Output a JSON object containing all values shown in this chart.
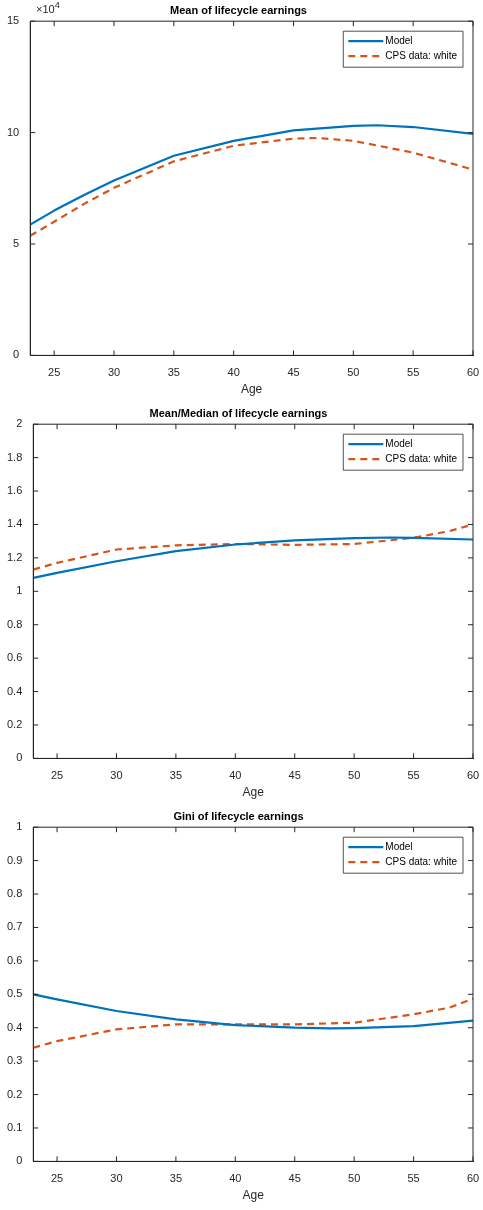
{
  "chart_data": [
    {
      "type": "line",
      "title": "Mean of lifecycle earnings",
      "xlabel": "Age",
      "annotations": [
        "×10$^{4}$"
      ],
      "xlim": [
        23,
        60
      ],
      "xticks": [
        25,
        30,
        35,
        40,
        45,
        50,
        55,
        60
      ],
      "ylim": [
        0,
        15
      ],
      "yticks": [
        0,
        5,
        10,
        15
      ],
      "grid": false,
      "legend": "top right",
      "marker": "none",
      "series": [
        {
          "name": "Model",
          "color": "#0072bd",
          "line_style": "solid",
          "x": [
            23,
            25,
            27.5,
            30,
            35,
            40,
            45,
            50,
            52,
            55,
            60
          ],
          "values": [
            5.87,
            6.5,
            7.2,
            7.85,
            8.96,
            9.63,
            10.1,
            10.3,
            10.33,
            10.25,
            9.94
          ]
        },
        {
          "name": "CPS data: white",
          "color": "#d95319",
          "line_style": "dashed",
          "x": [
            23,
            25,
            27.5,
            30,
            35,
            40,
            45,
            47,
            50,
            55,
            60
          ],
          "values": [
            5.37,
            6.0,
            6.8,
            7.52,
            8.71,
            9.41,
            9.73,
            9.76,
            9.63,
            9.1,
            8.34
          ]
        }
      ]
    },
    {
      "type": "line",
      "title": "Mean/Median of lifecycle earnings",
      "xlabel": "Age",
      "xlim": [
        23,
        60
      ],
      "xticks": [
        25,
        30,
        35,
        40,
        45,
        50,
        55,
        60
      ],
      "ylim": [
        0,
        2
      ],
      "yticks": [
        0,
        0.2,
        0.4,
        0.6,
        0.8,
        1,
        1.2,
        1.4,
        1.6,
        1.8,
        2
      ],
      "grid": false,
      "legend": "top right",
      "marker": "none",
      "series": [
        {
          "name": "Model",
          "color": "#0072bd",
          "line_style": "solid",
          "x": [
            23,
            25,
            30,
            35,
            40,
            45,
            50,
            53,
            55,
            60
          ],
          "values": [
            1.08,
            1.11,
            1.18,
            1.24,
            1.28,
            1.305,
            1.318,
            1.322,
            1.32,
            1.31
          ]
        },
        {
          "name": "CPS data: white",
          "color": "#d95319",
          "line_style": "dashed",
          "x": [
            23,
            25,
            30,
            35,
            40,
            45,
            50,
            55,
            58,
            60
          ],
          "values": [
            1.13,
            1.17,
            1.25,
            1.275,
            1.283,
            1.278,
            1.283,
            1.32,
            1.36,
            1.4
          ]
        }
      ]
    },
    {
      "type": "line",
      "title": "Gini of lifecycle earnings",
      "xlabel": "Age",
      "xlim": [
        23,
        60
      ],
      "xticks": [
        25,
        30,
        35,
        40,
        45,
        50,
        55,
        60
      ],
      "ylim": [
        0,
        1
      ],
      "yticks": [
        0,
        0.1,
        0.2,
        0.3,
        0.4,
        0.5,
        0.6,
        0.7,
        0.8,
        0.9,
        1
      ],
      "grid": false,
      "legend": "top right",
      "marker": "none",
      "series": [
        {
          "name": "Model",
          "color": "#0072bd",
          "line_style": "solid",
          "x": [
            23,
            25,
            30,
            35,
            40,
            45,
            48,
            50,
            55,
            60
          ],
          "values": [
            0.5,
            0.485,
            0.45,
            0.425,
            0.408,
            0.4,
            0.398,
            0.399,
            0.405,
            0.421
          ]
        },
        {
          "name": "CPS data: white",
          "color": "#d95319",
          "line_style": "dashed",
          "x": [
            23,
            25,
            30,
            35,
            40,
            45,
            50,
            55,
            58,
            60
          ],
          "values": [
            0.34,
            0.36,
            0.395,
            0.41,
            0.41,
            0.41,
            0.415,
            0.44,
            0.46,
            0.487
          ]
        }
      ]
    }
  ]
}
